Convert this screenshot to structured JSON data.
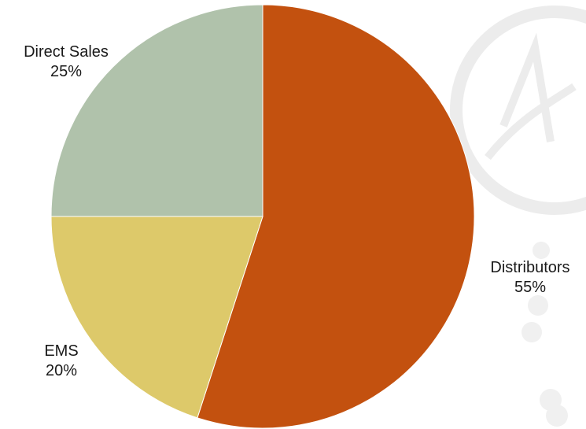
{
  "chart_data": {
    "type": "pie",
    "title": "",
    "slices": [
      {
        "label": "Distributors",
        "value": 55,
        "value_label": "55%",
        "color": "#C3510F"
      },
      {
        "label": "EMS",
        "value": 20,
        "value_label": "20%",
        "color": "#DDC96A"
      },
      {
        "label": "Direct Sales",
        "value": 25,
        "value_label": "25%",
        "color": "#B0C2AB"
      }
    ],
    "start": "top (12 o'clock)",
    "direction": "clockwise",
    "legend": "none",
    "labels": "outside slices, category name above percentage"
  },
  "colors": {
    "background": "#FFFFFF",
    "watermark": "#ECECEC"
  }
}
